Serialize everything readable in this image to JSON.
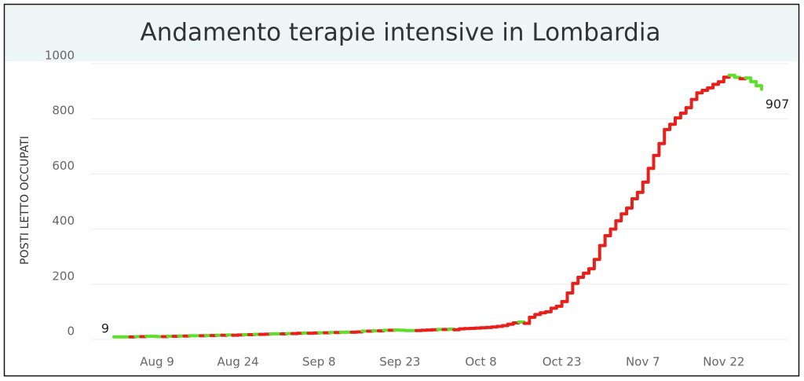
{
  "chart_data": {
    "type": "step_line",
    "title": "Andamento terapie intensive in Lombardia",
    "y_label": "POSTI LETTO OCCUPATI",
    "categories": [
      null,
      null,
      null,
      null,
      null,
      null,
      null,
      null,
      "Aug 9",
      null,
      null,
      null,
      null,
      null,
      null,
      null,
      null,
      null,
      null,
      null,
      null,
      null,
      null,
      "Aug 24",
      null,
      null,
      null,
      null,
      null,
      null,
      null,
      null,
      null,
      null,
      null,
      null,
      null,
      null,
      "Sep 8",
      null,
      null,
      null,
      null,
      null,
      null,
      null,
      null,
      null,
      null,
      null,
      null,
      null,
      null,
      "Sep 23",
      null,
      null,
      null,
      null,
      null,
      null,
      null,
      null,
      null,
      null,
      null,
      null,
      null,
      null,
      "Oct 8",
      null,
      null,
      null,
      null,
      null,
      null,
      null,
      null,
      null,
      null,
      null,
      null,
      null,
      null,
      "Oct 23",
      null,
      null,
      null,
      null,
      null,
      null,
      null,
      null,
      null,
      null,
      null,
      null,
      null,
      null,
      "Nov 7",
      null,
      null,
      null,
      null,
      null,
      null,
      null,
      null,
      null,
      null,
      null,
      null,
      null,
      null,
      "Nov 22",
      null,
      null,
      null,
      null,
      null,
      null,
      null
    ],
    "values": [
      9,
      9,
      9,
      9,
      10,
      10,
      11,
      11,
      10,
      10,
      11,
      11,
      12,
      12,
      13,
      13,
      13,
      14,
      14,
      15,
      15,
      16,
      15,
      16,
      17,
      17,
      18,
      18,
      19,
      20,
      20,
      20,
      21,
      21,
      22,
      23,
      22,
      23,
      24,
      24,
      25,
      25,
      26,
      26,
      26,
      27,
      30,
      30,
      31,
      31,
      33,
      33,
      34,
      33,
      32,
      32,
      32,
      33,
      34,
      35,
      36,
      36,
      37,
      35,
      38,
      39,
      40,
      41,
      42,
      43,
      45,
      47,
      50,
      55,
      60,
      63,
      58,
      80,
      90,
      96,
      100,
      113,
      120,
      137,
      168,
      203,
      225,
      240,
      256,
      290,
      340,
      376,
      400,
      430,
      455,
      476,
      510,
      533,
      570,
      620,
      667,
      710,
      761,
      780,
      803,
      820,
      840,
      870,
      894,
      903,
      912,
      925,
      934,
      951,
      958,
      950,
      945,
      948,
      935,
      920,
      907
    ],
    "increase_color": "#e8201c",
    "decrease_color": "#5ee02a",
    "ylim": [
      0,
      1000
    ],
    "yticks": [
      0,
      200,
      400,
      600,
      800,
      1000
    ],
    "grid": true
  }
}
